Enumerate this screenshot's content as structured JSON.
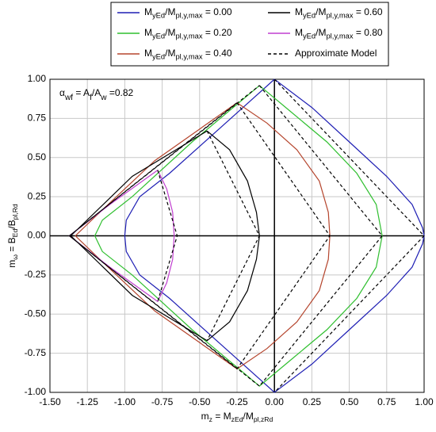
{
  "chart_data": {
    "type": "line",
    "xlabel": [
      {
        "text": "m",
        "sub": false
      },
      {
        "text": "z",
        "sub": true
      },
      {
        "text": " = M",
        "sub": false
      },
      {
        "text": "zEd",
        "sub": true
      },
      {
        "text": "/M",
        "sub": false
      },
      {
        "text": "pl,zRd",
        "sub": true
      }
    ],
    "ylabel": [
      {
        "text": "m",
        "sub": false
      },
      {
        "text": "ω",
        "sub": true
      },
      {
        "text": " = B",
        "sub": false
      },
      {
        "text": "Ed",
        "sub": true
      },
      {
        "text": "/B",
        "sub": false
      },
      {
        "text": "pl,Rd",
        "sub": true
      }
    ],
    "annotation": [
      {
        "text": "α",
        "sub": false
      },
      {
        "text": "wf",
        "sub": true
      },
      {
        "text": " = A",
        "sub": false
      },
      {
        "text": "f",
        "sub": true
      },
      {
        "text": "/A",
        "sub": false
      },
      {
        "text": "w",
        "sub": true
      },
      {
        "text": " =0.82",
        "sub": false
      }
    ],
    "xlim": [
      -1.5,
      1.0
    ],
    "ylim": [
      -1.0,
      1.0
    ],
    "xticks": [
      {
        "value": -1.5,
        "label": "-1.50"
      },
      {
        "value": -1.25,
        "label": "-1.25"
      },
      {
        "value": -1.0,
        "label": "-1.00"
      },
      {
        "value": -0.75,
        "label": "-0.75"
      },
      {
        "value": -0.5,
        "label": "-0.50"
      },
      {
        "value": -0.25,
        "label": "-0.25"
      },
      {
        "value": 0,
        "label": "0.00"
      },
      {
        "value": 0.25,
        "label": "0.25"
      },
      {
        "value": 0.5,
        "label": "0.50"
      },
      {
        "value": 0.75,
        "label": "0.75"
      },
      {
        "value": 1.0,
        "label": "1.00"
      }
    ],
    "yticks": [
      {
        "value": -1.0,
        "label": "-1.00"
      },
      {
        "value": -0.75,
        "label": "-0.75"
      },
      {
        "value": -0.5,
        "label": "-0.50"
      },
      {
        "value": -0.25,
        "label": "-0.25"
      },
      {
        "value": 0,
        "label": "0.00"
      },
      {
        "value": 0.25,
        "label": "0.25"
      },
      {
        "value": 0.5,
        "label": "0.50"
      },
      {
        "value": 0.75,
        "label": "0.75"
      },
      {
        "value": 1.0,
        "label": "1.00"
      }
    ],
    "grid": true,
    "series": [
      {
        "name": [
          {
            "text": "M",
            "sub": false
          },
          {
            "text": "yEd",
            "sub": true
          },
          {
            "text": "/M",
            "sub": false
          },
          {
            "text": "pl,y,max",
            "sub": true
          },
          {
            "text": " = 0.00",
            "sub": false
          }
        ],
        "color": "#1f1fb4",
        "x": [
          0,
          0.25,
          0.5,
          0.75,
          0.92,
          0.99,
          1.0,
          0.99,
          0.92,
          0.75,
          0.5,
          0.25,
          0,
          -0.35,
          -0.7,
          -0.9,
          -0.99,
          -1.0,
          -0.99,
          -0.9,
          -0.7,
          -0.35,
          0
        ],
        "values": [
          1,
          0.82,
          0.6,
          0.38,
          0.2,
          0.05,
          0,
          -0.05,
          -0.2,
          -0.38,
          -0.6,
          -0.82,
          -1,
          -0.7,
          -0.4,
          -0.25,
          -0.1,
          0,
          0.1,
          0.25,
          0.4,
          0.7,
          1
        ]
      },
      {
        "name": [
          {
            "text": "M",
            "sub": false
          },
          {
            "text": "yEd",
            "sub": true
          },
          {
            "text": "/M",
            "sub": false
          },
          {
            "text": "pl,y,max",
            "sub": true
          },
          {
            "text": " = 0.20",
            "sub": false
          }
        ],
        "color": "#2fbf2f",
        "x": [
          -0.1,
          0.1,
          0.35,
          0.55,
          0.68,
          0.72,
          0.68,
          0.55,
          0.35,
          0.1,
          -0.1,
          -0.55,
          -0.95,
          -1.15,
          -1.2,
          -1.15,
          -0.95,
          -0.55,
          -0.1
        ],
        "values": [
          0.96,
          0.8,
          0.6,
          0.4,
          0.2,
          0,
          -0.2,
          -0.4,
          -0.6,
          -0.8,
          -0.96,
          -0.6,
          -0.25,
          -0.1,
          0,
          0.1,
          0.25,
          0.6,
          0.96
        ]
      },
      {
        "name": [
          {
            "text": "M",
            "sub": false
          },
          {
            "text": "yEd",
            "sub": true
          },
          {
            "text": "/M",
            "sub": false
          },
          {
            "text": "pl,y,max",
            "sub": true
          },
          {
            "text": " = 0.40",
            "sub": false
          }
        ],
        "color": "#b5452d",
        "x": [
          -0.25,
          -0.05,
          0.15,
          0.3,
          0.36,
          0.37,
          0.36,
          0.3,
          0.15,
          -0.05,
          -0.25,
          -0.8,
          -1.2,
          -1.33,
          -1.2,
          -0.8,
          -0.25
        ],
        "values": [
          0.85,
          0.72,
          0.55,
          0.35,
          0.15,
          0,
          -0.15,
          -0.35,
          -0.55,
          -0.72,
          -0.85,
          -0.48,
          -0.12,
          0,
          0.12,
          0.48,
          0.85
        ]
      },
      {
        "name": [
          {
            "text": "M",
            "sub": false
          },
          {
            "text": "yEd",
            "sub": true
          },
          {
            "text": "/M",
            "sub": false
          },
          {
            "text": "pl,y,max",
            "sub": true
          },
          {
            "text": " = 0.60",
            "sub": false
          }
        ],
        "color": "#000000",
        "x": [
          -0.45,
          -0.3,
          -0.18,
          -0.12,
          -0.1,
          -0.12,
          -0.18,
          -0.3,
          -0.45,
          -0.95,
          -1.36,
          -0.95,
          -0.45
        ],
        "values": [
          0.67,
          0.55,
          0.35,
          0.15,
          0,
          -0.15,
          -0.35,
          -0.55,
          -0.67,
          -0.38,
          0,
          0.38,
          0.67
        ]
      },
      {
        "name": [
          {
            "text": "M",
            "sub": false
          },
          {
            "text": "yEd",
            "sub": true
          },
          {
            "text": "/M",
            "sub": false
          },
          {
            "text": "pl,y,max",
            "sub": true
          },
          {
            "text": " = 0.80",
            "sub": false
          }
        ],
        "color": "#c13fd0",
        "x": [
          -0.78,
          -0.72,
          -0.68,
          -0.67,
          -0.68,
          -0.72,
          -0.78,
          -1.1,
          -1.37,
          -1.1,
          -0.78
        ],
        "values": [
          0.42,
          0.3,
          0.15,
          0,
          -0.15,
          -0.3,
          -0.42,
          -0.2,
          0,
          0.2,
          0.42
        ]
      },
      {
        "name": [
          {
            "text": "Approximate Model",
            "sub": false
          }
        ],
        "color": "#000000",
        "dash": true,
        "x": [
          0,
          1.0,
          0,
          null,
          -0.1,
          0.72,
          -0.1,
          -1.37,
          -0.1,
          null,
          -0.25,
          0.37,
          -0.25,
          -1.37,
          -0.25,
          null,
          -0.45,
          -0.1,
          -0.45,
          null,
          -0.78,
          -0.65,
          -0.78
        ],
        "values": [
          1,
          0,
          -1,
          null,
          0.96,
          0,
          -0.96,
          0,
          0.96,
          null,
          0.85,
          0,
          -0.85,
          0,
          0.85,
          null,
          0.67,
          0,
          -0.67,
          null,
          0.42,
          0,
          -0.42
        ]
      }
    ]
  }
}
